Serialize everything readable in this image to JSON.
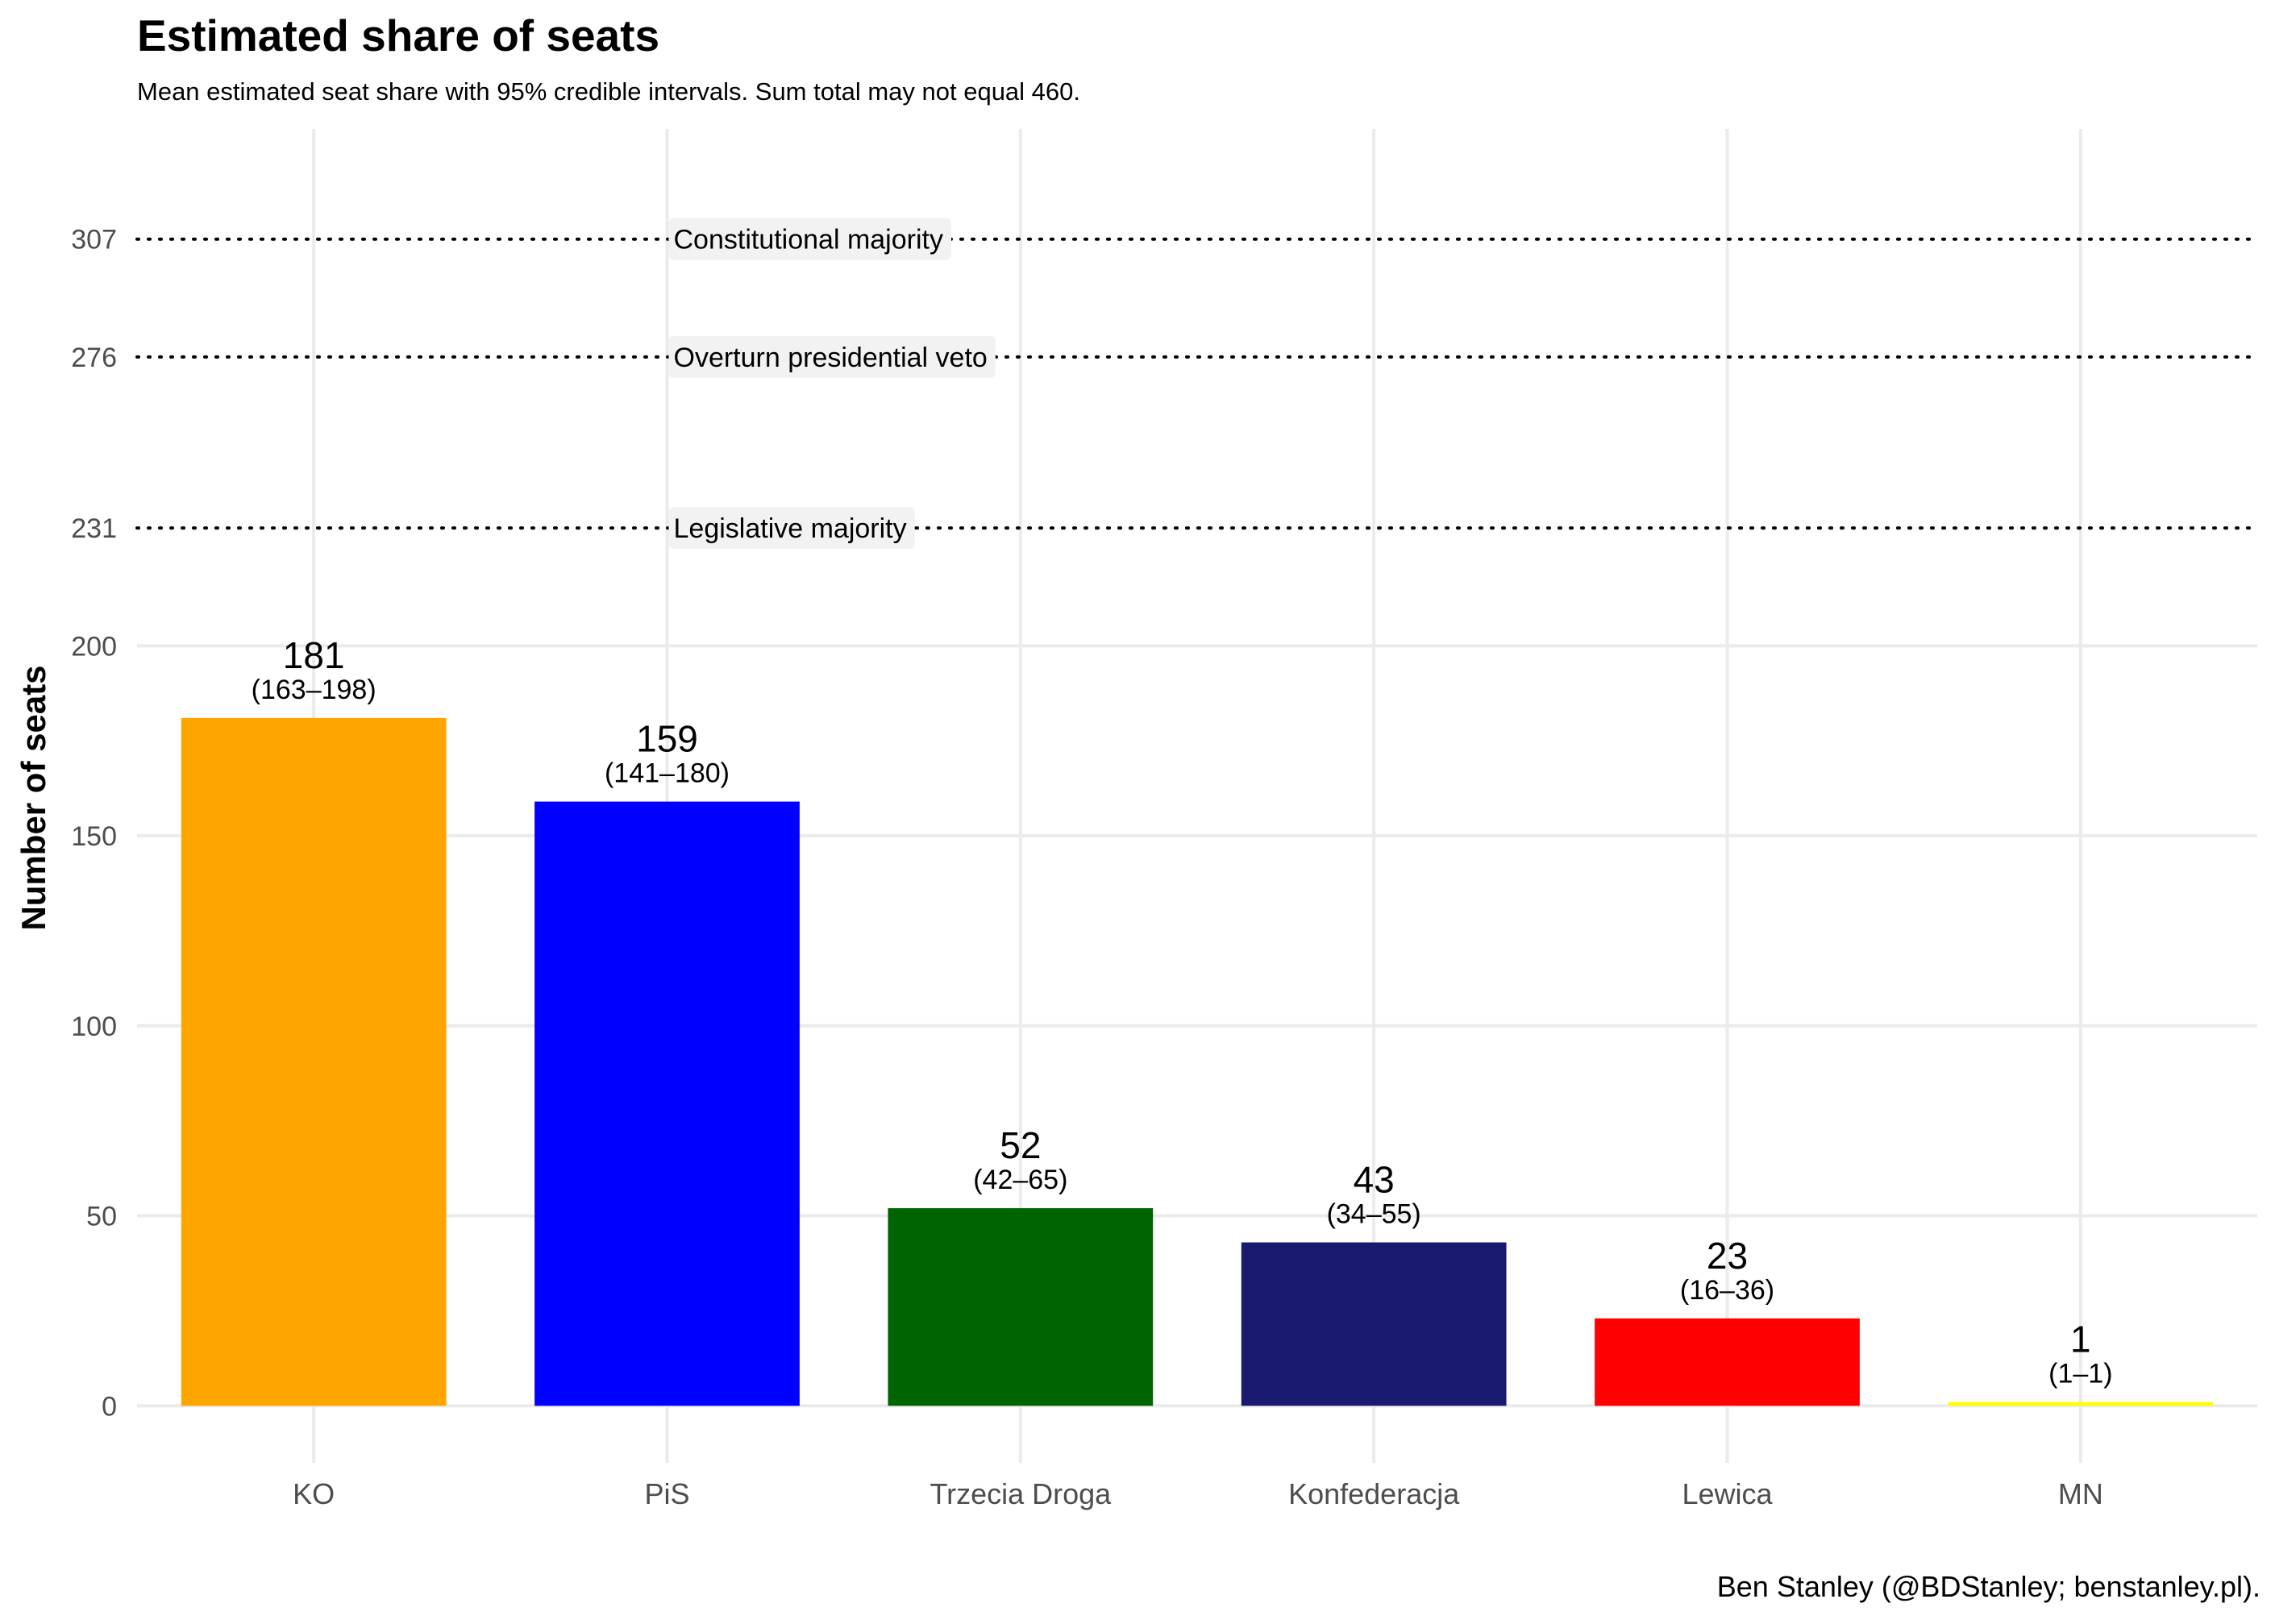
{
  "chart_data": {
    "type": "bar",
    "title": "Estimated share of seats",
    "subtitle": "Mean estimated seat share with 95% credible intervals. Sum total may not equal 460.",
    "ylabel": "Number of seats",
    "xlabel": "",
    "caption": "Ben Stanley (@BDStanley; benstanley.pl).",
    "categories": [
      "KO",
      "PiS",
      "Trzecia Droga",
      "Konfederacja",
      "Lewica",
      "MN"
    ],
    "values": [
      181,
      159,
      52,
      43,
      23,
      1
    ],
    "intervals": [
      "(163–198)",
      "(141–180)",
      "(42–65)",
      "(34–55)",
      "(16–36)",
      "(1–1)"
    ],
    "colors": [
      "#FFA500",
      "#0000FF",
      "#006400",
      "#191970",
      "#FF0000",
      "#FFFF00"
    ],
    "yticks": [
      0,
      50,
      100,
      150,
      200,
      231,
      276,
      307
    ],
    "ylim": [
      -15,
      336
    ],
    "grid": true,
    "reference_lines": [
      {
        "value": 307,
        "label": "Constitutional majority"
      },
      {
        "value": 276,
        "label": "Overturn presidential veto"
      },
      {
        "value": 231,
        "label": "Legislative majority"
      }
    ]
  }
}
